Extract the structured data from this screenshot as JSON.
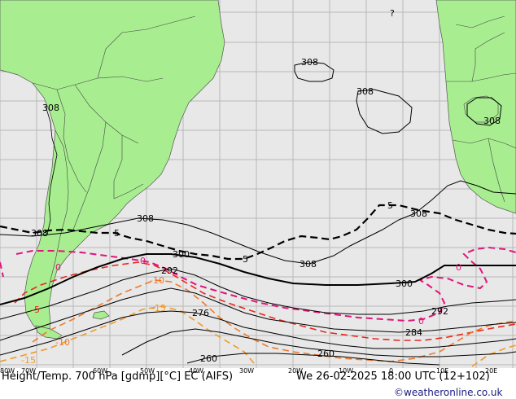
{
  "caption": {
    "left": "Height/Temp. 700 hPa [gdmp][°C] EC (AIFS)",
    "right": "We 26-02-2025 18:00 UTC (12+102)",
    "credit": "©weatheronline.co.uk"
  },
  "longitude_labels": [
    "80W",
    "70W",
    "60W",
    "50W",
    "40W",
    "30W",
    "20W",
    "10W",
    "0",
    "10E",
    "20E"
  ],
  "height_contour_labels": [
    "308",
    "308",
    "308",
    "308",
    "308",
    "308",
    "300",
    "300",
    "292",
    "292",
    "284",
    "276",
    "260",
    "260"
  ],
  "temperature_contour_labels": [
    "5",
    "5",
    "5",
    "0",
    "0",
    "0",
    "-5",
    "-10",
    "-15",
    "-15"
  ],
  "colors": {
    "ocean": "#e8e8e8",
    "land": "#a8ee90",
    "height_contour": "#000000",
    "temp_positive": "#000000",
    "temp_zero": "#e0147a",
    "temp_minus5": "#e8281e",
    "temp_minus10": "#f07828",
    "temp_minus15": "#f09a28"
  },
  "legend_marker": "?"
}
